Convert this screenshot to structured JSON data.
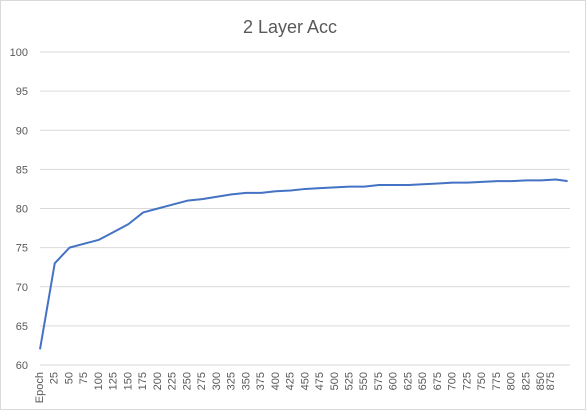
{
  "chart_data": {
    "type": "line",
    "title": "2 Layer Acc",
    "xlabel": "",
    "ylabel": "",
    "ylim": [
      60,
      100
    ],
    "yticks": [
      60,
      65,
      70,
      75,
      80,
      85,
      90,
      95,
      100
    ],
    "x_tick_labels": [
      "Epoch",
      "25",
      "50",
      "75",
      "100",
      "125",
      "150",
      "175",
      "200",
      "225",
      "250",
      "275",
      "300",
      "325",
      "350",
      "375",
      "400",
      "425",
      "450",
      "475",
      "500",
      "525",
      "550",
      "575",
      "600",
      "625",
      "650",
      "675",
      "700",
      "725",
      "750",
      "775",
      "800",
      "825",
      "850",
      "875"
    ],
    "grid": true,
    "legend": "none",
    "series": [
      {
        "color": "#4472C4",
        "x": [
          0,
          25,
          50,
          75,
          100,
          125,
          150,
          175,
          200,
          225,
          250,
          275,
          300,
          325,
          350,
          375,
          400,
          425,
          450,
          475,
          500,
          525,
          550,
          575,
          600,
          625,
          650,
          675,
          700,
          725,
          750,
          775,
          800,
          825,
          850,
          875,
          895
        ],
        "values": [
          62,
          73,
          75,
          75.5,
          76,
          77,
          78,
          79.5,
          80,
          80.5,
          81,
          81.2,
          81.5,
          81.8,
          82,
          82,
          82.2,
          82.3,
          82.5,
          82.6,
          82.7,
          82.8,
          82.8,
          83,
          83,
          83,
          83.1,
          83.2,
          83.3,
          83.3,
          83.4,
          83.5,
          83.5,
          83.6,
          83.6,
          83.7,
          83.5
        ]
      }
    ]
  }
}
